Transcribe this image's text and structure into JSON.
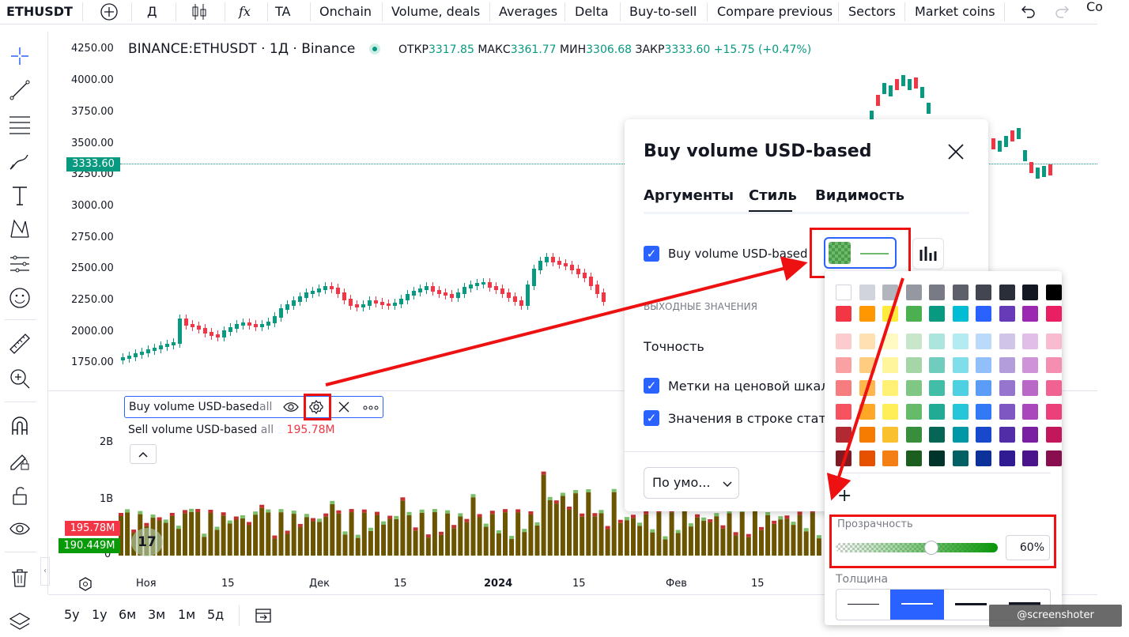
{
  "topbar": {
    "symbol": "ETHUSDT",
    "interval": "Д",
    "fx": "fx",
    "items": [
      "TA",
      "Onchain",
      "Volume, deals",
      "Averages",
      "Delta",
      "Buy-to-sell",
      "Compare previous",
      "Sectors",
      "Market coins"
    ],
    "cut_label": "Co"
  },
  "legend": {
    "title": "BINANCE:ETHUSDT · 1Д · Binance",
    "open_label": "ОТКР",
    "open": "3317.85",
    "high_label": "МАКС",
    "high": "3361.77",
    "low_label": "МИН",
    "low": "3306.68",
    "close_label": "ЗАКР",
    "close": "3333.60",
    "change": "+15.75 (+0.47%)"
  },
  "price_axis": [
    "4250.00",
    "4000.00",
    "3750.00",
    "3500.00",
    "3250.00",
    "3000.00",
    "2750.00",
    "2500.00",
    "2250.00",
    "2000.00",
    "1750.00"
  ],
  "price_badge": "3333.60",
  "volume_axis": [
    "2B",
    "1B",
    "0"
  ],
  "volume_badges": {
    "sell": "195.78M",
    "buy": "190.449M"
  },
  "indicator": {
    "buy_name": "Buy volume USD-based",
    "buy_suffix": "all",
    "sell_name": "Sell volume USD-based",
    "sell_suffix": "all",
    "sell_value": "195.78M"
  },
  "time_axis": [
    "Ноя",
    "15",
    "Дек",
    "15",
    "2024",
    "15",
    "Фев",
    "15"
  ],
  "timeframes": [
    "5у",
    "1у",
    "6м",
    "3м",
    "1м",
    "5д"
  ],
  "dialog": {
    "title": "Buy volume USD-based",
    "tabs": [
      "Аргументы",
      "Стиль",
      "Видимость"
    ],
    "plot_label": "Buy volume USD-based",
    "section_output": "ВЫХОДНЫЕ ЗНАЧЕНИЯ",
    "precision_label": "Точность",
    "scale_labels": "Метки на ценовой шкале",
    "status_values": "Значения в строке статус",
    "defaults_button": "По умо..."
  },
  "palette": {
    "add_label": "+",
    "opacity_label": "Прозрачность",
    "opacity_value": "60%",
    "thickness_label": "Толщина",
    "greys": [
      "#ffffff",
      "#d1d4dc",
      "#b2b5be",
      "#9598a1",
      "#787b86",
      "#5d606b",
      "#434651",
      "#2a2e39",
      "#131722",
      "#000000"
    ],
    "main": [
      "#f23645",
      "#ff9800",
      "#ffeb3b",
      "#4caf50",
      "#089981",
      "#00bcd4",
      "#2962ff",
      "#673ab7",
      "#9c27b0",
      "#e91e63"
    ],
    "shades": [
      [
        "#fccbcd",
        "#ffe0b2",
        "#fff9c4",
        "#c8e6c9",
        "#ace5dc",
        "#b2ebf2",
        "#bbd9fb",
        "#d1c4e9",
        "#e1bee7",
        "#f8bbd0"
      ],
      [
        "#faa1a4",
        "#ffcc80",
        "#fff59d",
        "#a5d6a7",
        "#70ccbd",
        "#80deea",
        "#90bff9",
        "#b39ddb",
        "#ce93d8",
        "#f48fb1"
      ],
      [
        "#f77c80",
        "#ffb74d",
        "#fff176",
        "#81c784",
        "#42bda8",
        "#4dd0e1",
        "#5b9cf6",
        "#9575cd",
        "#ba68c8",
        "#f06292"
      ],
      [
        "#f7525f",
        "#ffa726",
        "#ffee58",
        "#66bb6a",
        "#22ab94",
        "#26c6da",
        "#3179f5",
        "#7e57c2",
        "#ab47bc",
        "#ec407a"
      ],
      [
        "#b22833",
        "#f57c00",
        "#fbc02d",
        "#388e3c",
        "#056656",
        "#0097a7",
        "#1848cc",
        "#512da8",
        "#7b1fa2",
        "#c2185b"
      ],
      [
        "#801922",
        "#e65100",
        "#f57f17",
        "#1b5e20",
        "#00332a",
        "#006064",
        "#0c3299",
        "#311b92",
        "#4a148c",
        "#880e4f"
      ]
    ]
  },
  "watermark": "@screenshoter",
  "colors": {
    "up": "#089981",
    "down": "#f23645",
    "accent": "#2962ff",
    "annot": "#ee1111",
    "vol": "#6b5500"
  }
}
